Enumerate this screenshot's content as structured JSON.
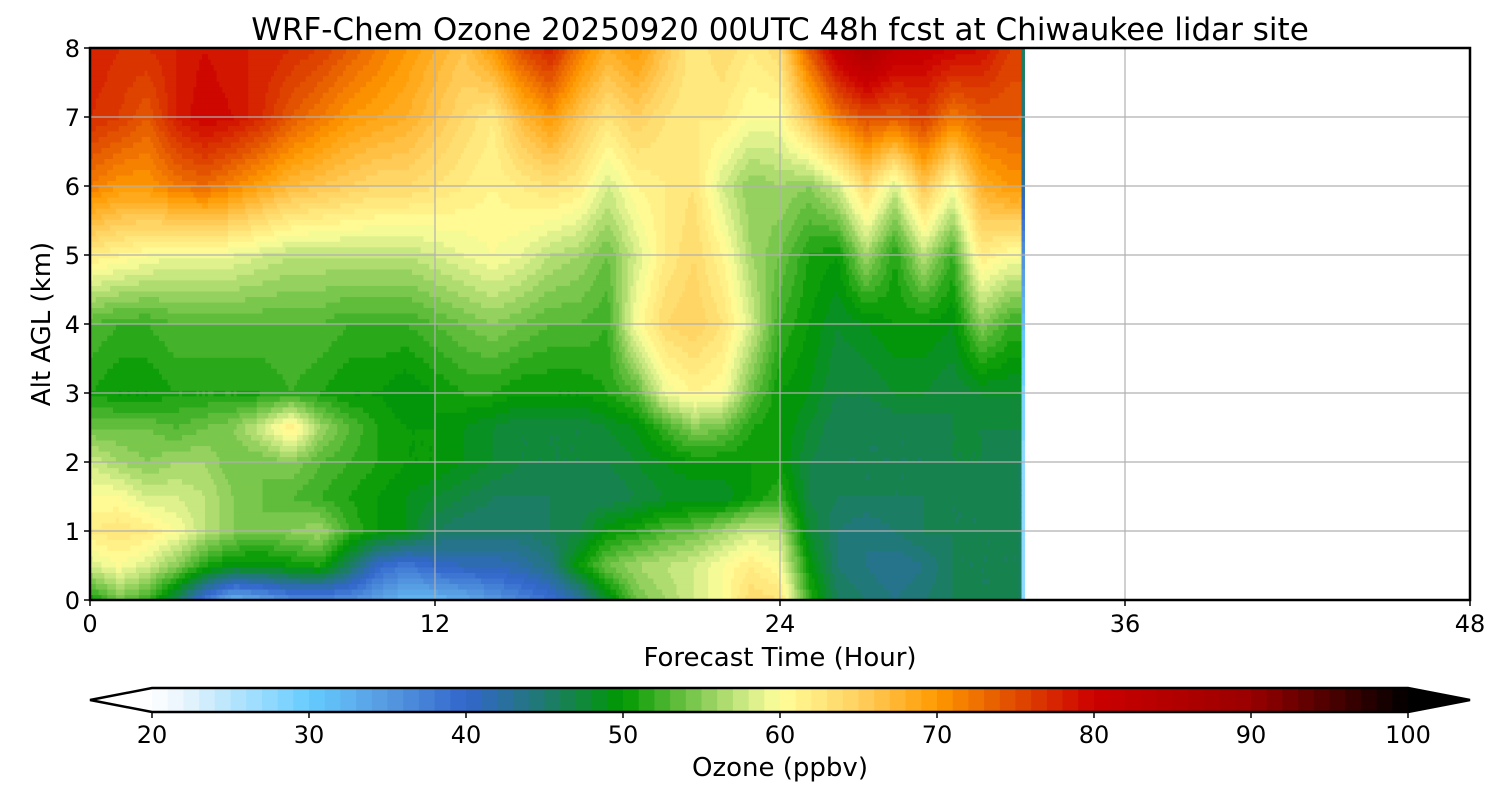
{
  "chart_data": {
    "type": "heatmap",
    "title": "WRF-Chem Ozone  20250920 00UTC 48h fcst at Chiwaukee lidar site",
    "xlabel": "Forecast Time (Hour)",
    "ylabel": "Alt AGL (km)",
    "xlim": [
      0,
      48
    ],
    "ylim": [
      0,
      8
    ],
    "xticks": [
      "0",
      "12",
      "24",
      "36",
      "48"
    ],
    "yticks": [
      "0",
      "1",
      "2",
      "3",
      "4",
      "5",
      "6",
      "7",
      "8"
    ],
    "grid": true,
    "colorbar": {
      "label": "Ozone  (ppbv)",
      "range": [
        20,
        100
      ],
      "ticks": [
        "20",
        "30",
        "40",
        "50",
        "60",
        "70",
        "80",
        "90",
        "100"
      ],
      "extend": "both",
      "colors": [
        [
          20,
          "#ffffff"
        ],
        [
          22,
          "#e8f4fc"
        ],
        [
          30,
          "#66ccff"
        ],
        [
          35,
          "#5599e0"
        ],
        [
          40,
          "#3366cc"
        ],
        [
          45,
          "#1f7a70"
        ],
        [
          50,
          "#009900"
        ],
        [
          55,
          "#88cc55"
        ],
        [
          58,
          "#d4ec88"
        ],
        [
          60,
          "#ffff99"
        ],
        [
          65,
          "#ffd060"
        ],
        [
          70,
          "#ff9900"
        ],
        [
          75,
          "#e04a00"
        ],
        [
          80,
          "#cc0000"
        ],
        [
          90,
          "#990000"
        ],
        [
          100,
          "#000000"
        ]
      ]
    },
    "altitudes_km": [
      0,
      0.5,
      1,
      1.5,
      2,
      2.5,
      3,
      4,
      5,
      6,
      7,
      8
    ],
    "times_h": [
      0,
      1,
      2,
      3,
      4,
      5,
      6,
      7,
      8,
      9,
      10,
      11,
      12,
      13,
      14,
      15,
      16,
      17,
      18,
      19,
      20,
      21,
      22,
      23,
      24,
      25,
      26,
      27,
      28,
      29,
      30,
      31,
      32,
      32.35,
      32.6
    ],
    "ozone_ppbv": [
      [
        50,
        58,
        62,
        60,
        58,
        54,
        51,
        53,
        62,
        72,
        77,
        78
      ],
      [
        54,
        60,
        63,
        60,
        56,
        54,
        50,
        52,
        61,
        70,
        76,
        77
      ],
      [
        52,
        58,
        62,
        58,
        55,
        54,
        50,
        52,
        60,
        70,
        74,
        77
      ],
      [
        46,
        55,
        60,
        58,
        56,
        53,
        51,
        53,
        59,
        72,
        78,
        78
      ],
      [
        38,
        51,
        57,
        57,
        56,
        54,
        51,
        53,
        59,
        73,
        80,
        79
      ],
      [
        32,
        49,
        55,
        55,
        54,
        55,
        51,
        53,
        59,
        71,
        79,
        78
      ],
      [
        34,
        49,
        54,
        54,
        54,
        58,
        51,
        53,
        58,
        69,
        77,
        78
      ],
      [
        36,
        50,
        55,
        53,
        55,
        62,
        52,
        53,
        57,
        67,
        74,
        77
      ],
      [
        36,
        51,
        56,
        52,
        53,
        56,
        51,
        53,
        57,
        66,
        72,
        76
      ],
      [
        36,
        46,
        52,
        51,
        52,
        53,
        50,
        52,
        57,
        65,
        70,
        74
      ],
      [
        34,
        40,
        50,
        50,
        51,
        51,
        50,
        52,
        57,
        64,
        69,
        72
      ],
      [
        32,
        38,
        49,
        49,
        50,
        50,
        49,
        52,
        57,
        64,
        68,
        70
      ],
      [
        32,
        40,
        46,
        48,
        50,
        50,
        50,
        53,
        58,
        63,
        66,
        68
      ],
      [
        33,
        41,
        45,
        47,
        49,
        49,
        51,
        54,
        59,
        62,
        64,
        66
      ],
      [
        35,
        41,
        45,
        46,
        48,
        48,
        51,
        55,
        60,
        61,
        62,
        70
      ],
      [
        37,
        42,
        45,
        46,
        47,
        47,
        50,
        54,
        59,
        62,
        67,
        75
      ],
      [
        39,
        44,
        46,
        46,
        47,
        47,
        50,
        53,
        57,
        63,
        70,
        78
      ],
      [
        42,
        50,
        47,
        46,
        47,
        47,
        50,
        53,
        56,
        62,
        66,
        72
      ],
      [
        48,
        54,
        50,
        46,
        47,
        48,
        51,
        52,
        54,
        58,
        63,
        68
      ],
      [
        54,
        56,
        51,
        47,
        48,
        49,
        53,
        60,
        58,
        61,
        65,
        70
      ],
      [
        56,
        57,
        53,
        48,
        49,
        52,
        59,
        64,
        62,
        62,
        63,
        66
      ],
      [
        58,
        58,
        54,
        48,
        50,
        55,
        61,
        65,
        64,
        63,
        62,
        62
      ],
      [
        60,
        60,
        56,
        48,
        50,
        54,
        60,
        63,
        61,
        58,
        62,
        64
      ],
      [
        64,
        62,
        58,
        50,
        50,
        51,
        54,
        58,
        56,
        55,
        60,
        62
      ],
      [
        63,
        60,
        57,
        52,
        50,
        50,
        50,
        52,
        54,
        56,
        60,
        64
      ],
      [
        52,
        50,
        48,
        47,
        47,
        48,
        49,
        50,
        51,
        55,
        66,
        74
      ],
      [
        46,
        45,
        45,
        46,
        46,
        46,
        47,
        48,
        50,
        58,
        72,
        82
      ],
      [
        45,
        44,
        44,
        46,
        46,
        46,
        47,
        49,
        56,
        64,
        75,
        86
      ],
      [
        44,
        43,
        45,
        46,
        46,
        46,
        48,
        50,
        51,
        58,
        74,
        82
      ],
      [
        45,
        44,
        46,
        46,
        46,
        46,
        48,
        50,
        57,
        66,
        76,
        81
      ],
      [
        46,
        46,
        46,
        46,
        47,
        47,
        47,
        49,
        52,
        60,
        72,
        80
      ],
      [
        46,
        46,
        46,
        46,
        47,
        47,
        48,
        55,
        62,
        68,
        74,
        79
      ],
      [
        46,
        46,
        46,
        46,
        46,
        47,
        48,
        52,
        60,
        70,
        74,
        76
      ],
      [
        46,
        46,
        46,
        46,
        46,
        47,
        48,
        52,
        60,
        70,
        74,
        76
      ],
      [
        0,
        0,
        0,
        0,
        0,
        0,
        0,
        0,
        0,
        0,
        0,
        0
      ]
    ]
  }
}
